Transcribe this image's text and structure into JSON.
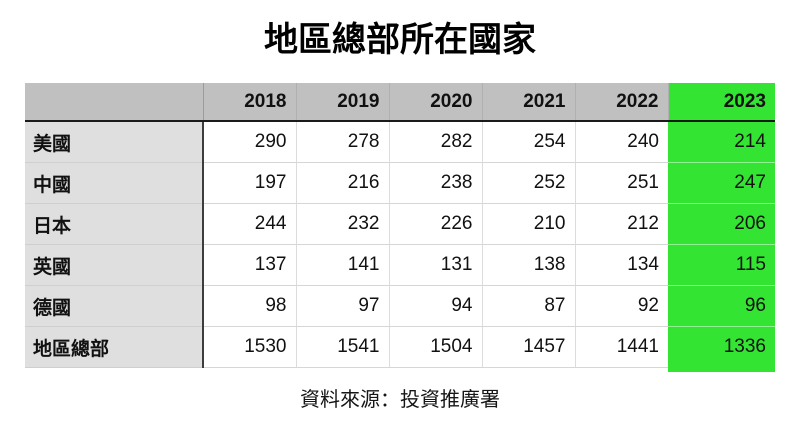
{
  "colors": {
    "highlight_green": "#33e433",
    "header_gray": "#c0c0c0",
    "label_gray": "#dfdfdf"
  },
  "chart_data": {
    "type": "table",
    "title": "地區總部所在國家",
    "categories": [
      "2018",
      "2019",
      "2020",
      "2021",
      "2022",
      "2023"
    ],
    "highlight_column": "2023",
    "corner_label": "",
    "series": [
      {
        "name": "美國",
        "values": [
          290,
          278,
          282,
          254,
          240,
          214
        ]
      },
      {
        "name": "中國",
        "values": [
          197,
          216,
          238,
          252,
          251,
          247
        ]
      },
      {
        "name": "日本",
        "values": [
          244,
          232,
          226,
          210,
          212,
          206
        ]
      },
      {
        "name": "英國",
        "values": [
          137,
          141,
          131,
          138,
          134,
          115
        ]
      },
      {
        "name": "德國",
        "values": [
          98,
          97,
          94,
          87,
          92,
          96
        ]
      },
      {
        "name": "地區總部",
        "values": [
          1530,
          1541,
          1504,
          1457,
          1441,
          1336
        ]
      }
    ],
    "source_note": "資料來源：投資推廣署"
  }
}
